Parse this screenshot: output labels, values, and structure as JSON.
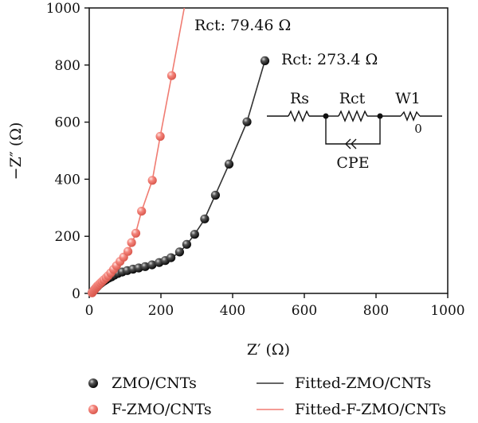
{
  "chart_data": {
    "type": "scatter",
    "xlabel": "Z′ (Ω)",
    "ylabel": "−Z″ (Ω)",
    "xlim": [
      0,
      1000
    ],
    "ylim": [
      0,
      1000
    ],
    "x_ticks": [
      0,
      200,
      400,
      600,
      800,
      1000
    ],
    "y_ticks": [
      0,
      200,
      400,
      600,
      800,
      1000
    ],
    "legend_position": "bottom",
    "series": [
      {
        "name": "ZMO/CNTs",
        "color": "#111111",
        "marker": "sphere",
        "points": [
          [
            8,
            3
          ],
          [
            10,
            6
          ],
          [
            12,
            9
          ],
          [
            14,
            12
          ],
          [
            16,
            15
          ],
          [
            18,
            18
          ],
          [
            21,
            22
          ],
          [
            24,
            26
          ],
          [
            28,
            31
          ],
          [
            32,
            35
          ],
          [
            37,
            40
          ],
          [
            42,
            44
          ],
          [
            48,
            49
          ],
          [
            55,
            54
          ],
          [
            62,
            58
          ],
          [
            70,
            64
          ],
          [
            80,
            70
          ],
          [
            92,
            75
          ],
          [
            106,
            80
          ],
          [
            122,
            85
          ],
          [
            138,
            89
          ],
          [
            156,
            94
          ],
          [
            175,
            100
          ],
          [
            195,
            108
          ],
          [
            212,
            115
          ],
          [
            228,
            125
          ],
          [
            252,
            145
          ],
          [
            272,
            172
          ],
          [
            294,
            207
          ],
          [
            322,
            261
          ],
          [
            352,
            344
          ],
          [
            390,
            453
          ],
          [
            440,
            601
          ],
          [
            490,
            815
          ]
        ]
      },
      {
        "name": "F-ZMO/CNTs",
        "color": "#f07c72",
        "marker": "sphere",
        "points": [
          [
            8,
            2
          ],
          [
            10,
            6
          ],
          [
            12,
            9
          ],
          [
            14,
            12
          ],
          [
            16,
            15
          ],
          [
            18,
            18
          ],
          [
            20,
            21
          ],
          [
            22,
            25
          ],
          [
            25,
            28
          ],
          [
            28,
            32
          ],
          [
            32,
            37
          ],
          [
            36,
            42
          ],
          [
            41,
            48
          ],
          [
            47,
            55
          ],
          [
            53,
            62
          ],
          [
            60,
            72
          ],
          [
            68,
            84
          ],
          [
            76,
            97
          ],
          [
            86,
            112
          ],
          [
            96,
            127
          ],
          [
            108,
            147
          ],
          [
            118,
            178
          ],
          [
            130,
            211
          ],
          [
            146,
            288
          ],
          [
            176,
            396
          ],
          [
            198,
            550
          ],
          [
            230,
            763
          ]
        ]
      },
      {
        "name": "Fitted-ZMO/CNTs",
        "color": "#333333",
        "type": "line",
        "points": [
          [
            6,
            0
          ],
          [
            10,
            6
          ],
          [
            18,
            17
          ],
          [
            30,
            33
          ],
          [
            45,
            47
          ],
          [
            62,
            58
          ],
          [
            80,
            69
          ],
          [
            100,
            77
          ],
          [
            125,
            85
          ],
          [
            150,
            92
          ],
          [
            175,
            100
          ],
          [
            200,
            109
          ],
          [
            225,
            122
          ],
          [
            250,
            142
          ],
          [
            270,
            168
          ],
          [
            294,
            207
          ],
          [
            320,
            256
          ],
          [
            350,
            340
          ],
          [
            390,
            453
          ],
          [
            440,
            601
          ],
          [
            490,
            815
          ]
        ]
      },
      {
        "name": "Fitted-F-ZMO/CNTs",
        "color": "#f07c72",
        "type": "line",
        "points": [
          [
            6,
            0
          ],
          [
            10,
            6
          ],
          [
            18,
            18
          ],
          [
            28,
            32
          ],
          [
            40,
            47
          ],
          [
            53,
            63
          ],
          [
            66,
            81
          ],
          [
            80,
            101
          ],
          [
            96,
            127
          ],
          [
            112,
            157
          ],
          [
            128,
            204
          ],
          [
            146,
            288
          ],
          [
            176,
            396
          ],
          [
            198,
            550
          ],
          [
            230,
            763
          ],
          [
            265,
            1000
          ]
        ]
      }
    ],
    "annotations": [
      {
        "text": "Rct: 79.46 Ω",
        "color": "#f07c72"
      },
      {
        "text": "Rct: 273.4 Ω",
        "color": "#111111"
      }
    ],
    "circuit": {
      "rs": "Rs",
      "rct": "Rct",
      "w1": "W1",
      "w1_sub": "0",
      "cpe": "CPE"
    }
  }
}
